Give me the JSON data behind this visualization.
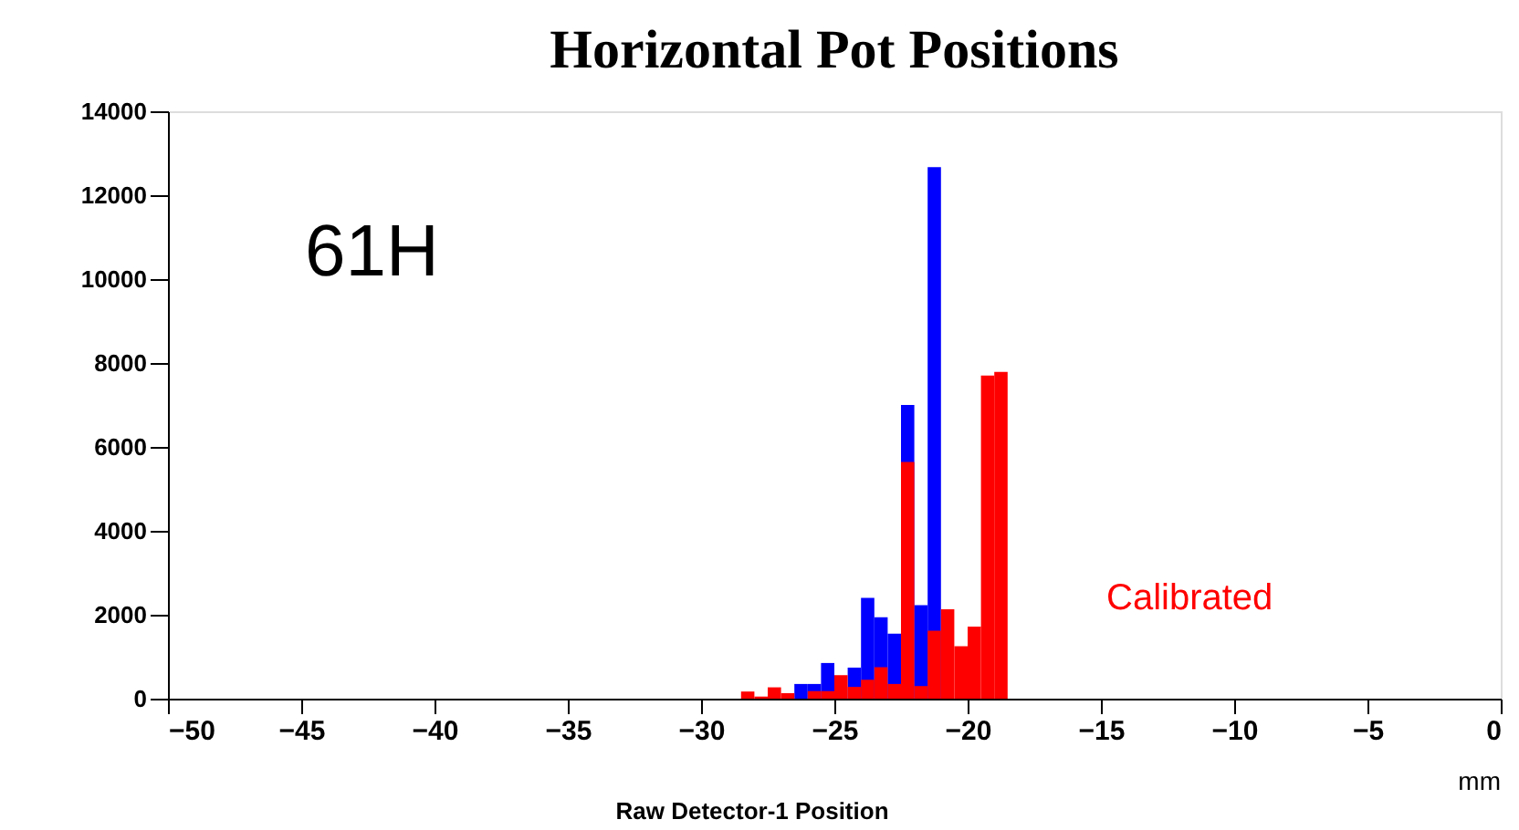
{
  "chart_data": {
    "type": "histogram",
    "title": "Horizontal Pot Positions",
    "xlabel": "Raw Detector-1 Position",
    "annotations": [
      "61H",
      "mm"
    ],
    "bins": [
      -28.5,
      -28,
      -27.5,
      -27,
      -26.5,
      -26,
      -25.5,
      -25,
      -24.5,
      -24,
      -23.5,
      -23,
      -22.5,
      -22,
      -21.5,
      -21,
      -20.5,
      -20,
      -19.5,
      -19,
      -18.5
    ],
    "series": [
      {
        "color": "#0000ff",
        "values": [
          0,
          0,
          0,
          0,
          350,
          350,
          850,
          0,
          740,
          2400,
          1940,
          1550,
          7000,
          2230,
          12670,
          0,
          0,
          0,
          0,
          0
        ]
      },
      {
        "name": "Calibrated",
        "color": "#ff0000",
        "values": [
          170,
          50,
          270,
          130,
          0,
          180,
          180,
          560,
          280,
          450,
          750,
          350,
          5640,
          300,
          1620,
          2130,
          1250,
          1720,
          7700,
          7790
        ]
      }
    ],
    "xlim": [
      -50,
      0
    ],
    "xticks": [
      -50,
      -45,
      -40,
      -35,
      -30,
      -25,
      -20,
      -15,
      -10,
      -5,
      0
    ],
    "ylim": [
      0,
      14000
    ],
    "yticks": [
      0,
      2000,
      4000,
      6000,
      8000,
      10000,
      12000,
      14000
    ],
    "grid": false
  }
}
